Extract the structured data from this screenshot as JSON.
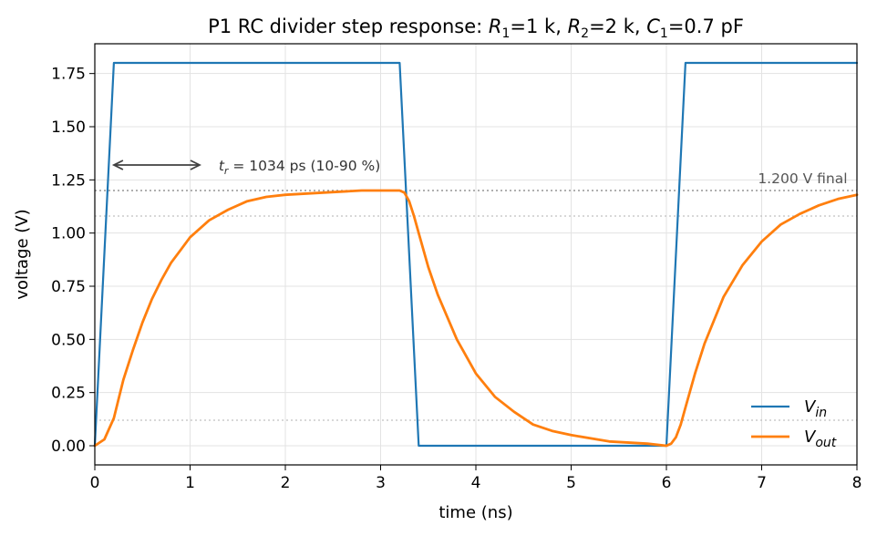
{
  "chart_data": {
    "type": "line",
    "title_prefix": "P1  RC divider step response: ",
    "title_params": [
      {
        "sym": "R",
        "sub": "1",
        "value": "=1 k"
      },
      {
        "sym": "R",
        "sub": "2",
        "value": "=2 k"
      },
      {
        "sym": "C",
        "sub": "1",
        "value": "=0.7 pF"
      }
    ],
    "xlabel": "time (ns)",
    "ylabel": "voltage (V)",
    "xlim": [
      0,
      8
    ],
    "ylim": [
      -0.09,
      1.89
    ],
    "xticks": [
      0,
      1,
      2,
      3,
      4,
      5,
      6,
      7,
      8
    ],
    "yticks": [
      0.0,
      0.25,
      0.5,
      0.75,
      1.0,
      1.25,
      1.5,
      1.75
    ],
    "ytick_labels": [
      "0.00",
      "0.25",
      "0.50",
      "0.75",
      "1.00",
      "1.25",
      "1.50",
      "1.75"
    ],
    "grid": true,
    "legend_position": "lower-right",
    "series": [
      {
        "name": "V",
        "name_sub": "in",
        "color": "#1f77b4",
        "x": [
          0,
          0.2,
          3.2,
          3.4,
          6.0,
          6.2,
          8.0
        ],
        "y": [
          0,
          1.8,
          1.8,
          0,
          0,
          1.8,
          1.8
        ]
      },
      {
        "name": "V",
        "name_sub": "out",
        "color": "#ff7f0e",
        "x": [
          0,
          0.1,
          0.2,
          0.3,
          0.4,
          0.5,
          0.6,
          0.7,
          0.8,
          0.9,
          1.0,
          1.2,
          1.4,
          1.6,
          1.8,
          2.0,
          2.4,
          2.8,
          3.2,
          3.25,
          3.3,
          3.35,
          3.4,
          3.5,
          3.6,
          3.8,
          4.0,
          4.2,
          4.4,
          4.6,
          4.8,
          5.0,
          5.4,
          5.8,
          6.0,
          6.05,
          6.1,
          6.15,
          6.2,
          6.3,
          6.4,
          6.6,
          6.8,
          7.0,
          7.2,
          7.4,
          7.6,
          7.8,
          8.0
        ],
        "y": [
          0,
          0.03,
          0.13,
          0.31,
          0.45,
          0.58,
          0.69,
          0.78,
          0.86,
          0.92,
          0.98,
          1.06,
          1.11,
          1.15,
          1.17,
          1.18,
          1.19,
          1.2,
          1.2,
          1.19,
          1.15,
          1.08,
          1.0,
          0.84,
          0.71,
          0.5,
          0.34,
          0.23,
          0.16,
          0.1,
          0.07,
          0.05,
          0.02,
          0.01,
          0.0,
          0.01,
          0.04,
          0.1,
          0.18,
          0.34,
          0.48,
          0.7,
          0.85,
          0.96,
          1.04,
          1.09,
          1.13,
          1.16,
          1.18
        ]
      }
    ],
    "reference_lines": [
      {
        "y": 1.2,
        "style": "dotted",
        "color": "#808080"
      },
      {
        "y": 1.08,
        "style": "dotted",
        "color": "#c0c0c0"
      },
      {
        "y": 0.12,
        "style": "dotted",
        "color": "#c0c0c0"
      }
    ],
    "annotations": {
      "rise_time": {
        "sym": "t",
        "sub": "r",
        "text": " = 1034 ps (10-90 %)",
        "arrow_x": [
          0.2,
          1.1
        ],
        "arrow_y": 1.32,
        "label_x": 1.3,
        "label_y": 1.32
      },
      "final": {
        "text": "1.200 V final",
        "x": 7.9,
        "y": 1.2
      }
    }
  }
}
